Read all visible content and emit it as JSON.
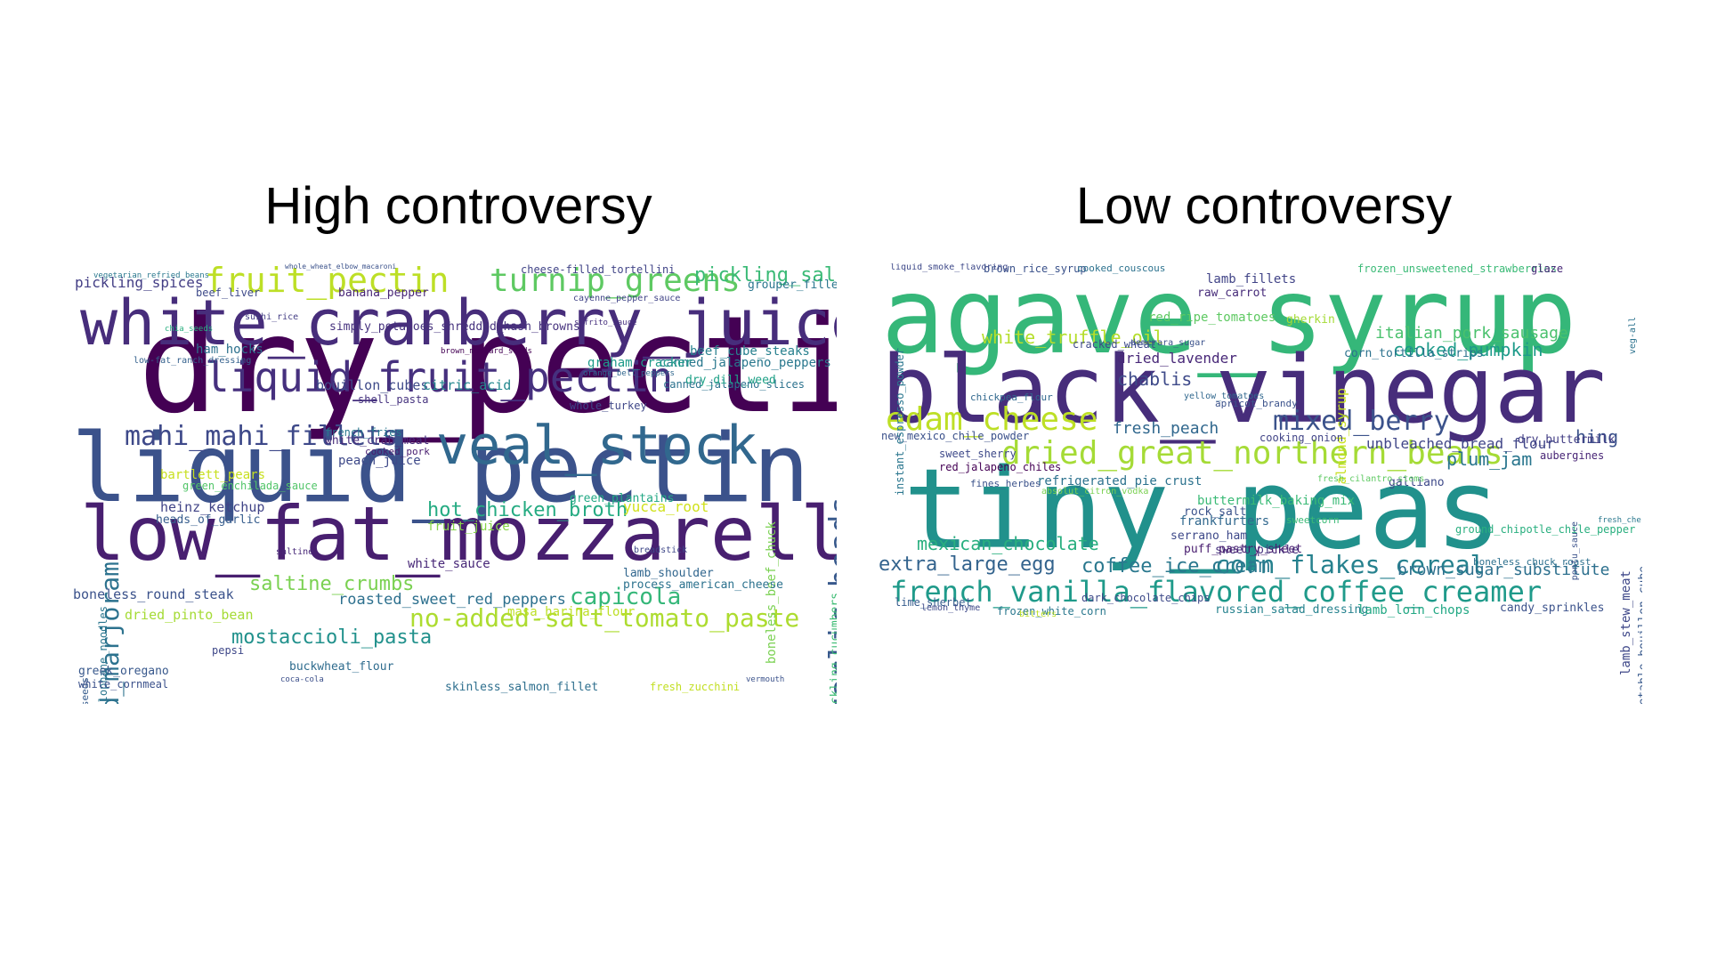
{
  "panels": [
    {
      "title": "High controversy",
      "words": [
        {
          "text": "dry_pectin",
          "color": "#440154"
        },
        {
          "text": "liquid_pectin",
          "color": "#3b528b"
        },
        {
          "text": "low_fat_mozzarella",
          "color": "#481f70"
        },
        {
          "text": "white_cranberry_juice",
          "color": "#472d7b"
        },
        {
          "text": "veal_stock",
          "color": "#31688e"
        },
        {
          "text": "liquid_fruit_pectin",
          "color": "#46307e"
        },
        {
          "text": "fruit_pectin",
          "color": "#bddf26"
        },
        {
          "text": "turnip_greens",
          "color": "#5ec962"
        },
        {
          "text": "mahi_mahi_fillets",
          "color": "#3e4989"
        },
        {
          "text": "ground_marjoram",
          "color": "#2c728e"
        },
        {
          "text": "garlic_heads",
          "color": "#38598c"
        },
        {
          "text": "no-added-salt_tomato_paste",
          "color": "#addc30"
        },
        {
          "text": "mostaccioli_pasta",
          "color": "#21918c"
        },
        {
          "text": "capicola",
          "color": "#35b779"
        },
        {
          "text": "hot_chicken_broth",
          "color": "#25ab82"
        },
        {
          "text": "saltine_crumbs",
          "color": "#7ad151"
        },
        {
          "text": "pickling_salt",
          "color": "#3aba76"
        },
        {
          "text": "roasted_sweet_red_peppers",
          "color": "#2d708e"
        },
        {
          "text": "boneless_round_steak",
          "color": "#3b528b"
        },
        {
          "text": "pickling_spices",
          "color": "#433e85"
        },
        {
          "text": "cheese-filled_tortellini",
          "color": "#414487"
        },
        {
          "text": "canned_jalapeno_peppers",
          "color": "#2a788e"
        },
        {
          "text": "canned_jalapeno_slices",
          "color": "#2c728e"
        },
        {
          "text": "bouillon_cubes",
          "color": "#3e4a89"
        },
        {
          "text": "citric_acid",
          "color": "#23888e"
        },
        {
          "text": "simply_potatoes_shredded_hash_browns",
          "color": "#46327e"
        },
        {
          "text": "hamburger_buns_with_sesame_seeds",
          "color": "#365c8d"
        },
        {
          "text": "cellophane_noodles",
          "color": "#2a768e"
        },
        {
          "text": "low-fat_ranch_dressing",
          "color": "#34618d"
        },
        {
          "text": "pickling_cucumbers",
          "color": "#3dbc74"
        },
        {
          "text": "boneless_beef_chuck",
          "color": "#7ad151"
        },
        {
          "text": "dried_pinto_bean",
          "color": "#a5db36"
        },
        {
          "text": "masa_harina_flour",
          "color": "#bddf26"
        },
        {
          "text": "greek_oregano",
          "color": "#38588c"
        },
        {
          "text": "white_cornmeal",
          "color": "#3b518b"
        },
        {
          "text": "skinless_salmon_fillet",
          "color": "#2e6f8e"
        },
        {
          "text": "fresh_zucchini",
          "color": "#c2df23"
        },
        {
          "text": "process_american_cheese",
          "color": "#2c728e"
        },
        {
          "text": "lamb_shoulder",
          "color": "#31668e"
        },
        {
          "text": "yucca_root",
          "color": "#d0e11c"
        },
        {
          "text": "heinz_ketchup",
          "color": "#414487"
        },
        {
          "text": "peach_juice",
          "color": "#3e4989"
        },
        {
          "text": "white_crab_meat",
          "color": "#472c7a"
        },
        {
          "text": "bartlett_pears",
          "color": "#c8e020"
        },
        {
          "text": "dry_dill_weed",
          "color": "#1fa187"
        },
        {
          "text": "beef_cube_steaks",
          "color": "#27808e"
        },
        {
          "text": "grouper_fillets",
          "color": "#2a768e"
        },
        {
          "text": "banana_pepper",
          "color": "#482576"
        },
        {
          "text": "beef_liver",
          "color": "#3e4a89"
        },
        {
          "text": "graham_cracker",
          "color": "#1e9b8a"
        },
        {
          "text": "whole_turkey",
          "color": "#3f4788"
        },
        {
          "text": "green_plantains",
          "color": "#22a884"
        },
        {
          "text": "fruit_juice",
          "color": "#86d549"
        },
        {
          "text": "white_sauce",
          "color": "#482878"
        },
        {
          "text": "pepsi",
          "color": "#3f4889"
        },
        {
          "text": "buckwheat_flour",
          "color": "#2f6c8e"
        },
        {
          "text": "shell_pasta",
          "color": "#46337f"
        },
        {
          "text": "green_enchilada_sauce",
          "color": "#52c569"
        },
        {
          "text": "heads_of_garlic",
          "color": "#365d8d"
        },
        {
          "text": "ham_hocks",
          "color": "#2d718e"
        },
        {
          "text": "french_fries",
          "color": "#2a778e"
        },
        {
          "text": "sushi_rice",
          "color": "#433d84"
        },
        {
          "text": "cooked_pork",
          "color": "#481d6f"
        },
        {
          "text": "breadstick",
          "color": "#3f4889"
        },
        {
          "text": "vermouth",
          "color": "#3b528b"
        },
        {
          "text": "chia_seeds",
          "color": "#29af7f"
        },
        {
          "text": "coca-cola",
          "color": "#3c4f8a"
        },
        {
          "text": "saltine",
          "color": "#482878"
        },
        {
          "text": "brown_mustard_seeds",
          "color": "#440154"
        },
        {
          "text": "cayenne_pepper_sauce",
          "color": "#414487"
        },
        {
          "text": "sofrito_sauce",
          "color": "#46307e"
        },
        {
          "text": "orange_bell_peppers",
          "color": "#31678e"
        },
        {
          "text": "vegetarian_refried_beans",
          "color": "#2a788e"
        },
        {
          "text": "whole_wheat_elbow_macaroni",
          "color": "#3b528b"
        }
      ]
    },
    {
      "title": "Low controversy",
      "words": [
        {
          "text": "agave_syrup",
          "color": "#35b779"
        },
        {
          "text": "black_vinegar",
          "color": "#472d7b"
        },
        {
          "text": "tiny_peas",
          "color": "#21918c"
        },
        {
          "text": "dried_great_northern_beans",
          "color": "#a5db36"
        },
        {
          "text": "french_vanilla_flavored_coffee_creamer",
          "color": "#1f9a8a"
        },
        {
          "text": "corn_flakes_cereal",
          "color": "#26818e"
        },
        {
          "text": "edam_cheese",
          "color": "#bddf26"
        },
        {
          "text": "coffee_ice_cream",
          "color": "#2a788e"
        },
        {
          "text": "mixed_berry",
          "color": "#3b528b"
        },
        {
          "text": "extra_large_egg",
          "color": "#33638d"
        },
        {
          "text": "white_truffle_oil",
          "color": "#b5de2b"
        },
        {
          "text": "cooked_pumpkin",
          "color": "#1e9b8a"
        },
        {
          "text": "italian_pork_sausage",
          "color": "#4ac16d"
        },
        {
          "text": "brown_sugar_substitute",
          "color": "#2d708e"
        },
        {
          "text": "mexican_chocolate",
          "color": "#29af7f"
        },
        {
          "text": "plum_jam",
          "color": "#2a768e"
        },
        {
          "text": "chablis",
          "color": "#3e4a89"
        },
        {
          "text": "dried_lavender",
          "color": "#482878"
        },
        {
          "text": "fresh_peach",
          "color": "#31688e"
        },
        {
          "text": "hing",
          "color": "#3b528b"
        },
        {
          "text": "almond_syrup",
          "color": "#c8e020"
        },
        {
          "text": "dry_buttermilk",
          "color": "#433e85"
        },
        {
          "text": "vegetable_bouillon_cube",
          "color": "#38598c"
        },
        {
          "text": "lamb_stew_meat",
          "color": "#3f4889"
        },
        {
          "text": "russian_salad_dressing",
          "color": "#26828e"
        },
        {
          "text": "lamb_loin_chops",
          "color": "#22a884"
        },
        {
          "text": "candy_sprinkles",
          "color": "#3b528b"
        },
        {
          "text": "unbleached_bread_flour",
          "color": "#404688"
        },
        {
          "text": "refrigerated_pie_crust",
          "color": "#2c728e"
        },
        {
          "text": "buttermilk_baking_mix",
          "color": "#3aba76"
        },
        {
          "text": "frankfurters",
          "color": "#31688e"
        },
        {
          "text": "serrano_ham",
          "color": "#3e4989"
        },
        {
          "text": "sweet_pickle",
          "color": "#46327e"
        },
        {
          "text": "rock_salt",
          "color": "#3b528b"
        },
        {
          "text": "puff_pastry_sheet",
          "color": "#481d6f"
        },
        {
          "text": "red_jalapeno_chiles",
          "color": "#440154"
        },
        {
          "text": "new_mexico_chile_powder",
          "color": "#3b518b"
        },
        {
          "text": "lamb_fillets",
          "color": "#414487"
        },
        {
          "text": "raw_carrot",
          "color": "#472c7a"
        },
        {
          "text": "red_ripe_tomatoes",
          "color": "#5ec962"
        },
        {
          "text": "gherkin",
          "color": "#a5db36"
        },
        {
          "text": "corn_tortilla_strips",
          "color": "#2c728e"
        },
        {
          "text": "cracked_wheat",
          "color": "#3e4a89"
        },
        {
          "text": "apricot_brandy",
          "color": "#3b528b"
        },
        {
          "text": "aubergines",
          "color": "#482576"
        },
        {
          "text": "galliano",
          "color": "#3e4989"
        },
        {
          "text": "boneless_chuck_roast",
          "color": "#2d708e"
        },
        {
          "text": "dark_chocolate_chips",
          "color": "#3e4a89"
        },
        {
          "text": "frozen_white_corn",
          "color": "#2a788e"
        },
        {
          "text": "lime_sherbet",
          "color": "#365c8d"
        },
        {
          "text": "sweetcorn",
          "color": "#3aba76"
        },
        {
          "text": "sweet_sherry",
          "color": "#3e4989"
        },
        {
          "text": "fines_herbes",
          "color": "#3b528b"
        },
        {
          "text": "cooking_onion",
          "color": "#414487"
        },
        {
          "text": "instant_espresso_powder",
          "color": "#2a768e"
        },
        {
          "text": "brown_rice_syrup",
          "color": "#3b528b"
        },
        {
          "text": "cooked_couscous",
          "color": "#2c728e"
        },
        {
          "text": "frozen_unsweetened_strawberries",
          "color": "#3aba76"
        },
        {
          "text": "liquid_smoke_flavoring",
          "color": "#3e4989"
        },
        {
          "text": "ground_chipotle_chile_pepper",
          "color": "#29af7f"
        },
        {
          "text": "glaze",
          "color": "#482878"
        },
        {
          "text": "chickpea_flour",
          "color": "#31688e"
        },
        {
          "text": "demerara_sugar",
          "color": "#3b528b"
        },
        {
          "text": "fresh_cilantro_stems",
          "color": "#5ec962"
        },
        {
          "text": "absolut_citron_vodka",
          "color": "#7ad151"
        },
        {
          "text": "bitters",
          "color": "#bddf26"
        },
        {
          "text": "lemon_thyme",
          "color": "#3e4989"
        },
        {
          "text": "veg-all",
          "color": "#2c728e"
        },
        {
          "text": "fresh_chervil",
          "color": "#2a788e"
        },
        {
          "text": "pontu_sauce",
          "color": "#3b528b"
        },
        {
          "text": "yellow_tomatoes",
          "color": "#31688e"
        }
      ]
    }
  ]
}
